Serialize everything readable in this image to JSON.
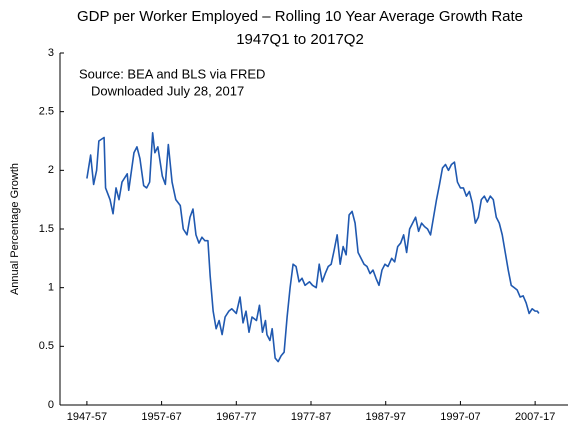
{
  "chart_data": {
    "type": "line",
    "title": "GDP per Worker Employed – Rolling 10 Year Average Growth Rate",
    "subtitle": "1947Q1 to 2017Q2",
    "annotations": [
      "Source:  BEA and BLS via FRED",
      "Downloaded July 28, 2017"
    ],
    "y_label": "Annual Percentage Growth",
    "xlim": [
      1953.4,
      2021.4
    ],
    "xticks": [
      {
        "value": 1957,
        "label": "1947-57"
      },
      {
        "value": 1967,
        "label": "1957-67"
      },
      {
        "value": 1977,
        "label": "1967-77"
      },
      {
        "value": 1987,
        "label": "1977-87"
      },
      {
        "value": 1997,
        "label": "1987-97"
      },
      {
        "value": 2007,
        "label": "1997-07"
      },
      {
        "value": 2017,
        "label": "2007-17"
      }
    ],
    "ylim": [
      0,
      3
    ],
    "yticks": [
      0,
      0.5,
      1,
      1.5,
      2,
      2.5,
      3
    ],
    "grid": false,
    "series": [
      {
        "color": "#2059b0",
        "x": [
          1957.0,
          1957.5,
          1957.9,
          1958.3,
          1958.6,
          1959.3,
          1959.5,
          1960.1,
          1960.5,
          1960.9,
          1961.3,
          1961.7,
          1962.4,
          1962.6,
          1963.3,
          1963.7,
          1964.1,
          1964.6,
          1965.0,
          1965.4,
          1965.8,
          1966.1,
          1966.5,
          1967.1,
          1967.5,
          1967.9,
          1968.4,
          1968.9,
          1969.5,
          1969.9,
          1970.4,
          1970.8,
          1971.2,
          1971.6,
          1972.0,
          1972.4,
          1972.8,
          1973.2,
          1973.5,
          1973.9,
          1974.3,
          1974.7,
          1975.1,
          1975.5,
          1976.0,
          1976.4,
          1977.0,
          1977.5,
          1977.9,
          1978.3,
          1978.7,
          1979.1,
          1979.7,
          1980.1,
          1980.5,
          1980.9,
          1981.1,
          1981.5,
          1981.8,
          1982.2,
          1982.6,
          1983.0,
          1983.4,
          1983.8,
          1984.2,
          1984.6,
          1985.0,
          1985.4,
          1985.8,
          1986.2,
          1986.8,
          1987.2,
          1987.7,
          1988.1,
          1988.5,
          1988.9,
          1989.3,
          1989.7,
          1990.1,
          1990.5,
          1990.9,
          1991.3,
          1991.7,
          1992.1,
          1992.5,
          1992.9,
          1993.3,
          1993.7,
          1994.1,
          1994.5,
          1994.9,
          1995.3,
          1995.7,
          1996.1,
          1996.5,
          1996.9,
          1997.3,
          1997.8,
          1998.2,
          1998.6,
          1999.0,
          1999.4,
          1999.8,
          2000.2,
          2000.6,
          2001.0,
          2001.4,
          2001.8,
          2002.2,
          2002.6,
          2003.0,
          2003.4,
          2003.8,
          2004.2,
          2004.6,
          2005.0,
          2005.4,
          2005.8,
          2006.2,
          2006.6,
          2007.0,
          2007.4,
          2007.8,
          2008.2,
          2008.6,
          2009.0,
          2009.4,
          2009.8,
          2010.2,
          2010.6,
          2011.0,
          2011.4,
          2011.8,
          2012.2,
          2012.6,
          2013.0,
          2013.4,
          2013.8,
          2014.2,
          2014.6,
          2015.0,
          2015.4,
          2015.8,
          2016.2,
          2016.6,
          2017.0,
          2017.3,
          2017.5
        ],
        "values": [
          1.93,
          2.13,
          1.88,
          2.0,
          2.25,
          2.28,
          1.85,
          1.75,
          1.63,
          1.85,
          1.75,
          1.9,
          1.97,
          1.83,
          2.15,
          2.2,
          2.1,
          1.87,
          1.85,
          1.9,
          2.32,
          2.15,
          2.2,
          1.95,
          1.88,
          2.22,
          1.9,
          1.75,
          1.7,
          1.5,
          1.45,
          1.6,
          1.67,
          1.45,
          1.38,
          1.43,
          1.4,
          1.4,
          1.1,
          0.8,
          0.65,
          0.72,
          0.6,
          0.75,
          0.8,
          0.82,
          0.78,
          0.92,
          0.7,
          0.8,
          0.62,
          0.75,
          0.72,
          0.85,
          0.62,
          0.72,
          0.6,
          0.55,
          0.65,
          0.4,
          0.37,
          0.42,
          0.45,
          0.75,
          1.0,
          1.2,
          1.18,
          1.05,
          1.08,
          1.02,
          1.05,
          1.02,
          1.0,
          1.2,
          1.05,
          1.12,
          1.18,
          1.2,
          1.32,
          1.45,
          1.2,
          1.35,
          1.28,
          1.62,
          1.65,
          1.55,
          1.3,
          1.25,
          1.2,
          1.18,
          1.12,
          1.15,
          1.08,
          1.02,
          1.15,
          1.2,
          1.18,
          1.25,
          1.22,
          1.35,
          1.38,
          1.45,
          1.3,
          1.5,
          1.55,
          1.6,
          1.48,
          1.55,
          1.52,
          1.5,
          1.45,
          1.6,
          1.75,
          1.88,
          2.02,
          2.05,
          2.0,
          2.05,
          2.07,
          1.9,
          1.85,
          1.85,
          1.78,
          1.82,
          1.72,
          1.55,
          1.6,
          1.75,
          1.78,
          1.73,
          1.78,
          1.75,
          1.6,
          1.55,
          1.45,
          1.3,
          1.15,
          1.02,
          1.0,
          0.98,
          0.92,
          0.93,
          0.87,
          0.78,
          0.82,
          0.8,
          0.8,
          0.78
        ]
      }
    ]
  }
}
